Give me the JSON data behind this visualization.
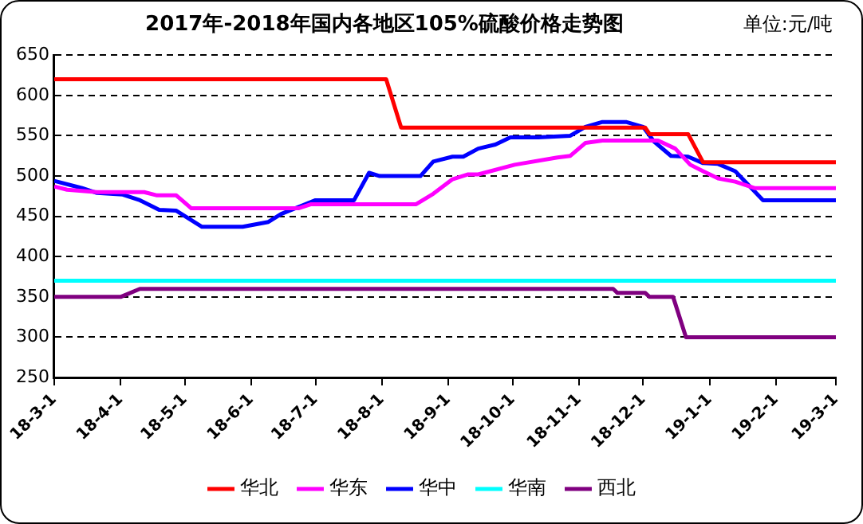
{
  "chart_data": {
    "type": "line",
    "title": "2017年-2018年国内各地区105%硫酸价格走势图",
    "subtitle": "单位:元/吨",
    "xlim": [
      "2018-03-01",
      "2019-03-01"
    ],
    "xticks": [
      {
        "value": "2018-03-01",
        "label": "18-3-1"
      },
      {
        "value": "2018-04-01",
        "label": "18-4-1"
      },
      {
        "value": "2018-05-01",
        "label": "18-5-1"
      },
      {
        "value": "2018-06-01",
        "label": "18-6-1"
      },
      {
        "value": "2018-07-01",
        "label": "18-7-1"
      },
      {
        "value": "2018-08-01",
        "label": "18-8-1"
      },
      {
        "value": "2018-09-01",
        "label": "18-9-1"
      },
      {
        "value": "2018-10-01",
        "label": "18-10-1"
      },
      {
        "value": "2018-11-01",
        "label": "18-11-1"
      },
      {
        "value": "2018-12-01",
        "label": "18-12-1"
      },
      {
        "value": "2019-01-01",
        "label": "19-1-1"
      },
      {
        "value": "2019-02-01",
        "label": "19-2-1"
      },
      {
        "value": "2019-03-01",
        "label": "19-3-1"
      }
    ],
    "ylim": [
      250,
      650
    ],
    "yticks": [
      250,
      300,
      350,
      400,
      450,
      500,
      550,
      600,
      650
    ],
    "grid": "y",
    "line_style": "solid",
    "marker": "none",
    "legend": "bottom",
    "series": [
      {
        "name": "华北",
        "color": "#ff0000",
        "x": [
          "2018-03-01",
          "2018-08-03",
          "2018-08-10",
          "2018-12-02",
          "2018-12-04",
          "2018-12-22",
          "2018-12-29",
          "2019-03-01"
        ],
        "values": [
          620,
          620,
          560,
          560,
          552,
          552,
          517,
          517
        ]
      },
      {
        "name": "华东",
        "color": "#ff00ff",
        "x": [
          "2018-03-01",
          "2018-03-07",
          "2018-03-21",
          "2018-04-12",
          "2018-04-18",
          "2018-04-27",
          "2018-05-04",
          "2018-06-23",
          "2018-06-29",
          "2018-08-17",
          "2018-08-25",
          "2018-09-03",
          "2018-09-10",
          "2018-09-15",
          "2018-10-02",
          "2018-10-22",
          "2018-10-28",
          "2018-11-04",
          "2018-11-12",
          "2018-12-08",
          "2018-12-16",
          "2018-12-23",
          "2018-12-29",
          "2019-01-05",
          "2019-01-13",
          "2019-01-22",
          "2019-03-01"
        ],
        "values": [
          487,
          483,
          480,
          480,
          476,
          476,
          460,
          460,
          465,
          465,
          478,
          496,
          502,
          502,
          514,
          523,
          525,
          541,
          544,
          544,
          534,
          514,
          506,
          497,
          493,
          485,
          485
        ]
      },
      {
        "name": "华中",
        "color": "#0000ff",
        "x": [
          "2018-03-01",
          "2018-03-14",
          "2018-03-21",
          "2018-04-02",
          "2018-04-10",
          "2018-04-19",
          "2018-04-27",
          "2018-05-09",
          "2018-05-28",
          "2018-06-09",
          "2018-06-15",
          "2018-07-01",
          "2018-07-19",
          "2018-07-26",
          "2018-07-31",
          "2018-08-19",
          "2018-08-25",
          "2018-09-03",
          "2018-09-08",
          "2018-09-15",
          "2018-09-23",
          "2018-09-30",
          "2018-10-13",
          "2018-10-28",
          "2018-11-04",
          "2018-11-12",
          "2018-11-23",
          "2018-12-01",
          "2018-12-06",
          "2018-12-14",
          "2018-12-22",
          "2018-12-29",
          "2019-01-05",
          "2019-01-13",
          "2019-01-26",
          "2019-03-01"
        ],
        "values": [
          494,
          485,
          479,
          477,
          470,
          458,
          457,
          437,
          437,
          443,
          453,
          470,
          470,
          504,
          500,
          500,
          518,
          524,
          524,
          534,
          539,
          548,
          548,
          550,
          561,
          567,
          567,
          561,
          543,
          525,
          524,
          516,
          515,
          506,
          470,
          470
        ]
      },
      {
        "name": "华南",
        "color": "#00ffff",
        "x": [
          "2018-03-01",
          "2019-03-01"
        ],
        "values": [
          370,
          370
        ]
      },
      {
        "name": "西北",
        "color": "#800080",
        "x": [
          "2018-03-01",
          "2018-04-01",
          "2018-04-10",
          "2018-11-17",
          "2018-11-19",
          "2018-12-02",
          "2018-12-04",
          "2018-12-15",
          "2018-12-21",
          "2019-03-01"
        ],
        "values": [
          350,
          350,
          360,
          360,
          355,
          355,
          350,
          350,
          300,
          300
        ]
      }
    ]
  }
}
